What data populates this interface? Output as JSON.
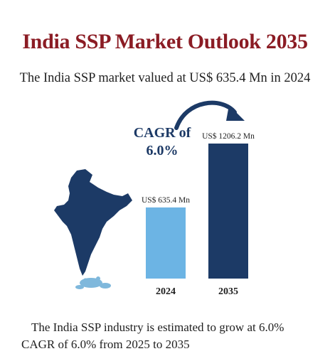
{
  "header": {
    "title": "India SSP Market Outlook 2035",
    "subtitle": "The India SSP market valued at US$ 635.4 Mn in 2024"
  },
  "cagr_label": [
    "CAGR of",
    "6.0%"
  ],
  "footer": {
    "line1": "The India SSP industry is estimated to grow at 6.0%",
    "line2": "CAGR of 6.0% from 2025 to 2035"
  },
  "chart_data": {
    "type": "bar",
    "categories": [
      "2024",
      "2035"
    ],
    "values": [
      635.4,
      1206.2
    ],
    "value_labels": [
      "US$ 635.4 Mn",
      "US$ 1206.2 Mn"
    ],
    "unit": "US$ Mn",
    "colors": [
      "#6cb4e4",
      "#1c3a66"
    ],
    "grid": false,
    "legend": "none"
  },
  "icons": [
    "india-map-icon",
    "fertilizer-granules-icon",
    "growth-arrow-icon"
  ],
  "colors": {
    "title": "#8b1c24",
    "accent_dark": "#1c3a66",
    "accent_light": "#6cb4e4"
  }
}
